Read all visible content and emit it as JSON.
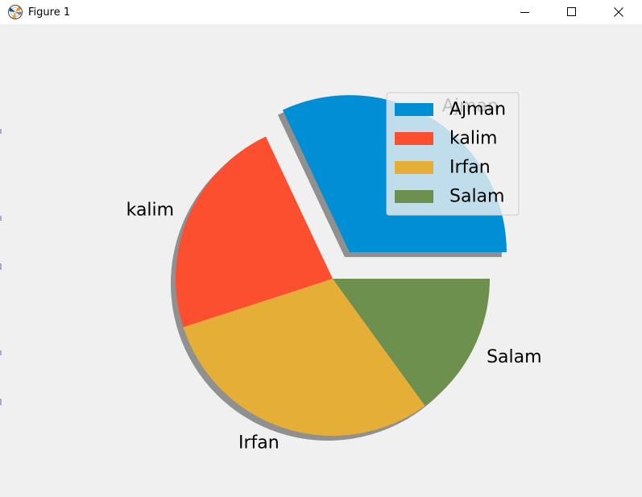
{
  "window": {
    "title": "Figure 1",
    "icon": "matplotlib-icon",
    "controls": [
      "minimize-icon",
      "maximize-icon",
      "close-icon"
    ]
  },
  "chart_data": {
    "type": "pie",
    "labels": [
      "Ajman",
      "kalim",
      "Irfan",
      "Salam"
    ],
    "values": [
      32,
      23,
      30,
      15
    ],
    "colors": [
      "#008fd5",
      "#fc4f30",
      "#e5ae37",
      "#6d904f"
    ],
    "explode": [
      0.2,
      0,
      0,
      0
    ],
    "startangle": 0,
    "counterclock": true,
    "shadow": true,
    "legend": {
      "entries": [
        "Ajman",
        "kalim",
        "Irfan",
        "Salam"
      ],
      "placement": "upper right"
    },
    "background": "#f0f0f0"
  }
}
